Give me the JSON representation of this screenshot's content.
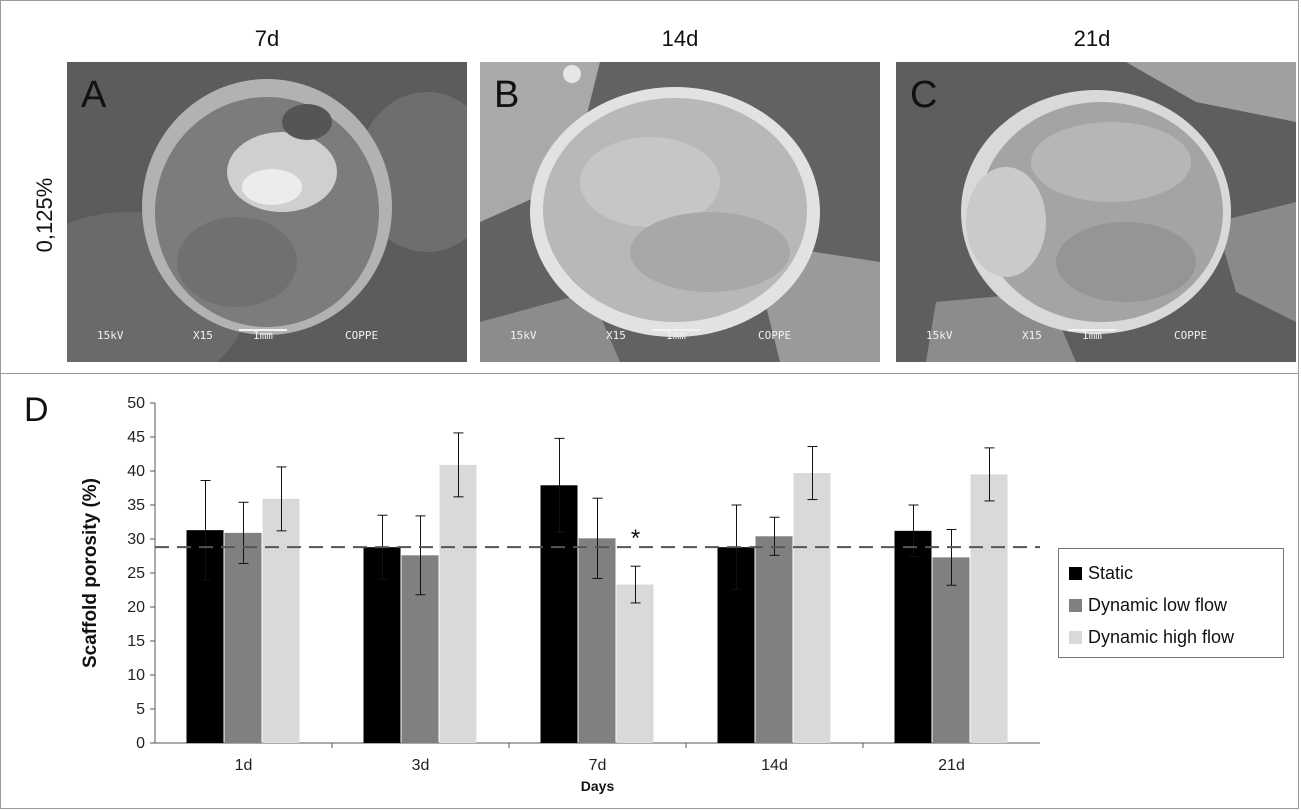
{
  "columns": [
    "7d",
    "14d",
    "21d"
  ],
  "row_label": "0,125%",
  "sem_panels": [
    {
      "letter": "A",
      "kv": "15kV",
      "mag": "X15",
      "scale": "1mm",
      "lab": "COPPE"
    },
    {
      "letter": "B",
      "kv": "15kV",
      "mag": "X15",
      "scale": "1mm",
      "lab": "COPPE"
    },
    {
      "letter": "C",
      "kv": "15kV",
      "mag": "X15",
      "scale": "1mm",
      "lab": "COPPE"
    }
  ],
  "panel_d_letter": "D",
  "colors": {
    "static": "#000000",
    "low": "#808080",
    "high": "#d9d9d9",
    "reference_line": "#555555"
  },
  "chart_data": {
    "type": "bar",
    "categories": [
      "1d",
      "3d",
      "7d",
      "14d",
      "21d"
    ],
    "series": [
      {
        "name": "Static",
        "values": [
          31.3,
          28.8,
          37.9,
          28.8,
          31.2
        ],
        "errors": [
          7.3,
          4.7,
          6.9,
          6.2,
          3.8
        ]
      },
      {
        "name": "Dynamic low flow",
        "values": [
          30.9,
          27.6,
          30.1,
          30.4,
          27.3
        ],
        "errors": [
          4.5,
          5.8,
          5.9,
          2.8,
          4.1
        ]
      },
      {
        "name": "Dynamic high flow",
        "values": [
          35.9,
          40.9,
          23.3,
          39.7,
          39.5
        ],
        "errors": [
          4.7,
          4.7,
          2.7,
          3.9,
          3.9
        ]
      }
    ],
    "reference_line": 28.8,
    "annotations": [
      {
        "text": "*",
        "category": "7d",
        "series": "Dynamic high flow"
      }
    ],
    "xlabel": "Days",
    "ylabel": "Scaffold porosity (%)",
    "ylim": [
      0,
      50
    ],
    "yticks": [
      "0",
      "5",
      "10",
      "15",
      "20",
      "25",
      "30",
      "35",
      "40",
      "45",
      "50"
    ],
    "legend": "right",
    "grid": false
  }
}
